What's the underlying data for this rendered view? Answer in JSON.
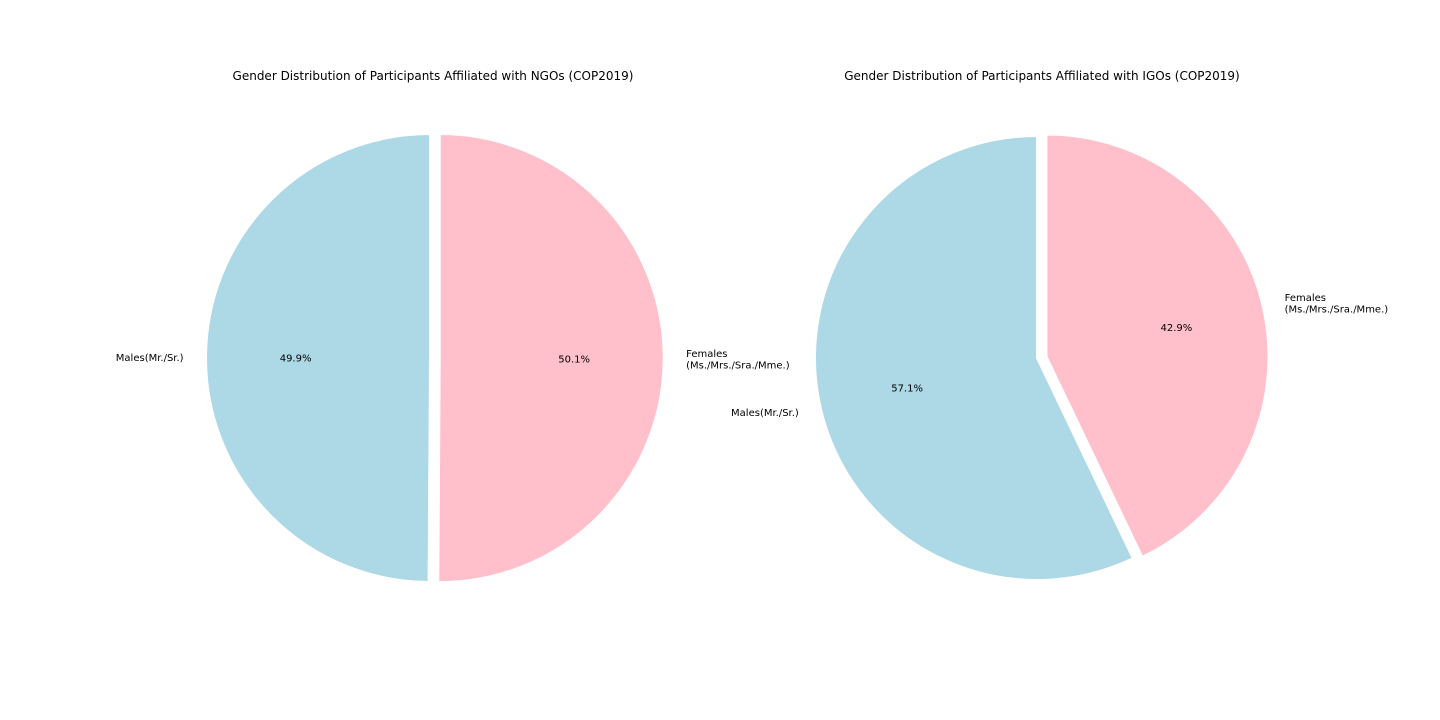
{
  "chart_data": [
    {
      "type": "pie",
      "title": "Gender Distribution of Participants Affiliated with NGOs (COP2019)",
      "labels": [
        "Males(Mr./Sr.)",
        "Females\n(Ms./Mrs./Sra./Mme.)"
      ],
      "values": [
        49.9,
        50.1
      ],
      "autopct": [
        "49.9%",
        "50.1%"
      ],
      "colors": [
        "#add8e6",
        "#ffc0cb"
      ],
      "explode": [
        0,
        0.03
      ],
      "startangle": 90,
      "counterclock": true
    },
    {
      "type": "pie",
      "title": "Gender Distribution of Participants Affiliated with IGOs (COP2019)",
      "labels": [
        "Males(Mr./Sr.)",
        "Females\n(Ms./Mrs./Sra./Mme.)"
      ],
      "values": [
        57.1,
        42.9
      ],
      "autopct": [
        "57.1%",
        "42.9%"
      ],
      "colors": [
        "#add8e6",
        "#ffc0cb"
      ],
      "explode": [
        0,
        0.03
      ],
      "startangle": 90,
      "counterclock": true
    }
  ]
}
